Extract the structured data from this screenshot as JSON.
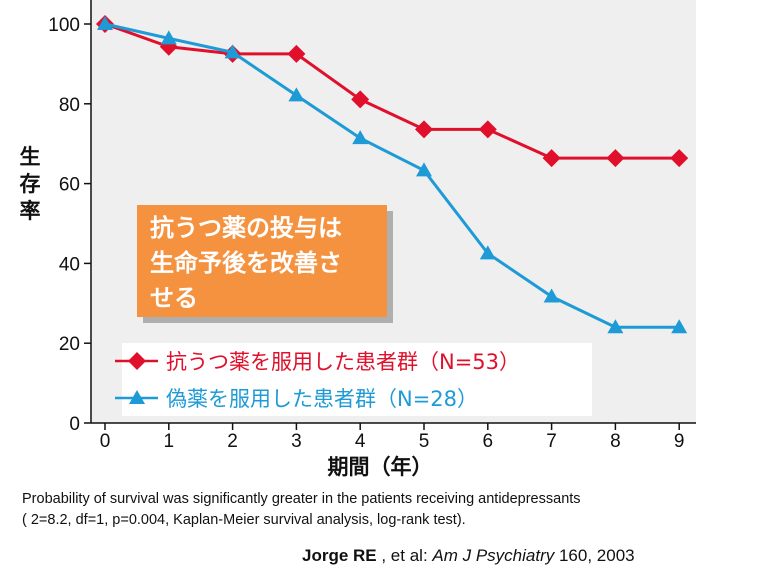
{
  "chart_data": {
    "type": "line",
    "xlabel": "期間（年）",
    "ylabel": "生存率",
    "x": [
      0,
      1,
      2,
      3,
      4,
      5,
      6,
      7,
      8,
      9
    ],
    "ylim": [
      0,
      100
    ],
    "xlim": [
      0,
      9
    ],
    "yticks": [
      0,
      20,
      40,
      60,
      80,
      100
    ],
    "grid": false,
    "legend_position": "bottom-left",
    "series": [
      {
        "name": "抗うつ薬を服用した患者群（N=53）",
        "color": "#e0102c",
        "marker": "diamond",
        "values": [
          100,
          94.3,
          92.5,
          92.5,
          81.1,
          73.6,
          73.6,
          66.4,
          66.4,
          66.4
        ]
      },
      {
        "name": "偽薬を服用した患者群（N=28）",
        "color": "#1e9bd7",
        "marker": "triangle",
        "values": [
          100,
          96.4,
          92.9,
          82.1,
          71.4,
          63.3,
          42.5,
          31.7,
          24,
          24
        ]
      }
    ],
    "annotation": {
      "lines": [
        "抗うつ薬の投与は",
        "生命予後を改善さ",
        "せる"
      ],
      "color": "#f4923f"
    },
    "plot_background": "#efefef"
  },
  "caption_line1": "Probability of survival was significantly greater in the patients receiving antidepressants",
  "caption_line2": "( 2=8.2, df=1, p=0.004, Kaplan-Meier survival analysis, log-rank test).",
  "citation": {
    "author": "Jorge RE",
    "mid": " , et al: ",
    "journal": "Am J Psychiatry",
    "rest": " 160, 2003"
  }
}
